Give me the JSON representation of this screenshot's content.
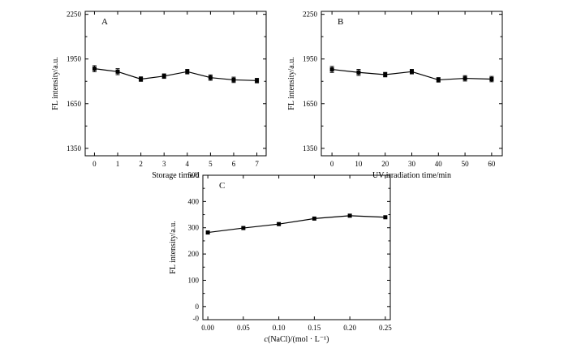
{
  "chart_data": [
    {
      "type": "line",
      "panel_label": "A",
      "xlabel": "Storage time/d",
      "ylabel": "FL intensity/a.u.",
      "x": [
        0,
        1,
        2,
        3,
        4,
        5,
        6,
        7
      ],
      "xticks": [
        "0",
        "1",
        "2",
        "3",
        "4",
        "5",
        "6",
        "7"
      ],
      "xlim": [
        -0.4,
        7.4
      ],
      "ylim": [
        1300,
        2270
      ],
      "yticks": [
        "1350",
        "1650",
        "1950",
        "2250"
      ],
      "series": [
        {
          "values": [
            1885,
            1865,
            1815,
            1835,
            1865,
            1825,
            1810,
            1805
          ],
          "errors": [
            20,
            20,
            15,
            15,
            15,
            18,
            18,
            15
          ]
        }
      ],
      "grid": false,
      "marker": "square"
    },
    {
      "type": "line",
      "panel_label": "B",
      "xlabel": "UV irradiation time/min",
      "ylabel": "FL intensity/a.u.",
      "x": [
        0,
        10,
        20,
        30,
        40,
        50,
        60
      ],
      "xticks": [
        "0",
        "10",
        "20",
        "30",
        "40",
        "50",
        "60"
      ],
      "xlim": [
        -4,
        64
      ],
      "ylim": [
        1300,
        2270
      ],
      "yticks": [
        "1350",
        "1650",
        "1950",
        "2250"
      ],
      "series": [
        {
          "values": [
            1880,
            1860,
            1845,
            1865,
            1810,
            1820,
            1815
          ],
          "errors": [
            20,
            20,
            15,
            15,
            15,
            18,
            18
          ]
        }
      ],
      "grid": false,
      "marker": "square"
    },
    {
      "type": "line",
      "panel_label": "C",
      "xlabel_italic": "c",
      "xlabel": "(NaCl)/(mol · L⁻¹)",
      "ylabel": "FL intensity/a.u.",
      "x": [
        0.0,
        0.05,
        0.1,
        0.15,
        0.2,
        0.25
      ],
      "xticks": [
        "0.00",
        "0.05",
        "0.10",
        "0.15",
        "0.20",
        "0.25"
      ],
      "xlim": [
        -0.007,
        0.257
      ],
      "ylim": [
        -50,
        500
      ],
      "yticks": [
        "0",
        "100",
        "200",
        "300",
        "400",
        "500"
      ],
      "yticks_minor": [
        "-0"
      ],
      "series": [
        {
          "values": [
            282,
            299,
            314,
            335,
            346,
            340
          ]
        }
      ],
      "grid": false,
      "marker": "square"
    }
  ]
}
